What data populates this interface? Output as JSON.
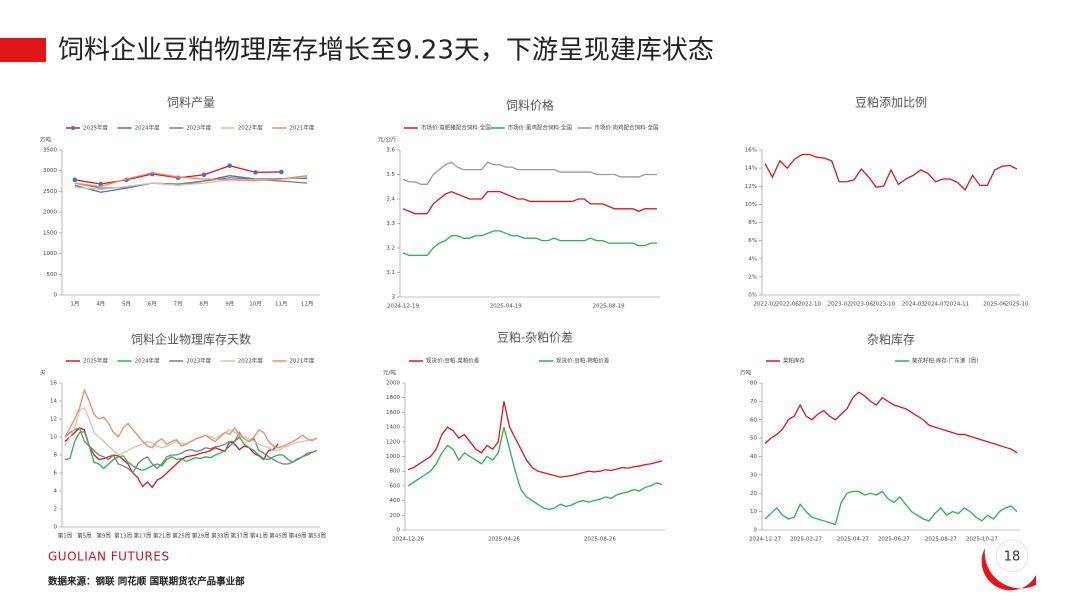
{
  "header": {
    "title": "饲料企业豆粕物理库存增长至9.23天，下游呈现建库状态"
  },
  "footer": {
    "logo": "GUOLIAN FUTURES",
    "source": "数据来源：钢联 同花顺 国联期货农产品事业部",
    "page": "18"
  },
  "chart_data": [
    {
      "type": "line",
      "title": "饲料产量",
      "y_label": "万吨",
      "legend": "top",
      "categories": [
        "1月",
        "4月",
        "5月",
        "6月",
        "7月",
        "8月",
        "9月",
        "10月",
        "11月",
        "12月"
      ],
      "ylim": [
        0,
        3500
      ],
      "yticks": [
        0,
        500,
        1000,
        1500,
        2000,
        2500,
        3000,
        3500
      ],
      "series": [
        {
          "name": "2025年度",
          "color": "#d7191c",
          "marker_color": "#4472c4",
          "values": [
            2780,
            2680,
            2780,
            2920,
            2830,
            2900,
            3120,
            2960,
            2970,
            null
          ]
        },
        {
          "name": "2024年度",
          "color": "#4472c4",
          "values": [
            2650,
            2480,
            2580,
            2700,
            2650,
            2750,
            2880,
            2800,
            2810,
            2820
          ]
        },
        {
          "name": "2023年度",
          "color": "#7f7f7f",
          "values": [
            2700,
            2580,
            2600,
            2700,
            2680,
            2750,
            2830,
            2790,
            2750,
            2700
          ]
        },
        {
          "name": "2022年度",
          "color": "#cfc6b4",
          "values": [
            2600,
            2550,
            2620,
            2700,
            2650,
            2700,
            2780,
            2780,
            2800,
            2850
          ]
        },
        {
          "name": "2021年度",
          "color": "#f08c64",
          "values": [
            2700,
            2620,
            2800,
            2950,
            2850,
            2800,
            2780,
            2760,
            2800,
            2880
          ]
        }
      ]
    },
    {
      "type": "line",
      "title": "饲料价格",
      "y_label": "元/公斤",
      "legend": "top",
      "categories": [
        "2024-12-19",
        null,
        null,
        null,
        null,
        null,
        null,
        null,
        null,
        null,
        null,
        null,
        null,
        null,
        null,
        null,
        null,
        "2025-04-19",
        null,
        null,
        null,
        null,
        null,
        null,
        null,
        null,
        null,
        null,
        null,
        null,
        null,
        null,
        null,
        null,
        "2025-08-19",
        null,
        null,
        null,
        null,
        null,
        null,
        null,
        null
      ],
      "ylim": [
        3,
        3.6
      ],
      "yticks": [
        3,
        3.1,
        3.2,
        3.3,
        3.4,
        3.5,
        3.6
      ],
      "series": [
        {
          "name": "市场价:育肥猪配合饲料:全国",
          "color": "#d7191c",
          "values": [
            3.36,
            3.35,
            3.34,
            3.34,
            3.34,
            3.38,
            3.4,
            3.42,
            3.43,
            3.42,
            3.41,
            3.4,
            3.4,
            3.4,
            3.43,
            3.43,
            3.43,
            3.42,
            3.41,
            3.4,
            3.4,
            3.39,
            3.39,
            3.39,
            3.39,
            3.39,
            3.39,
            3.39,
            3.39,
            3.4,
            3.4,
            3.38,
            3.38,
            3.38,
            3.37,
            3.36,
            3.36,
            3.36,
            3.36,
            3.35,
            3.36,
            3.36,
            3.36
          ]
        },
        {
          "name": "市场价:蛋鸡配合饲料:全国",
          "color": "#2eb04f",
          "values": [
            3.18,
            3.17,
            3.17,
            3.17,
            3.17,
            3.2,
            3.22,
            3.23,
            3.25,
            3.25,
            3.24,
            3.24,
            3.25,
            3.25,
            3.26,
            3.27,
            3.27,
            3.26,
            3.25,
            3.25,
            3.24,
            3.24,
            3.24,
            3.23,
            3.23,
            3.24,
            3.23,
            3.23,
            3.23,
            3.23,
            3.23,
            3.24,
            3.23,
            3.23,
            3.22,
            3.22,
            3.22,
            3.22,
            3.22,
            3.21,
            3.21,
            3.22,
            3.22
          ]
        },
        {
          "name": "市场价:肉鸡配合饲料:全国",
          "color": "#999999",
          "values": [
            3.48,
            3.47,
            3.47,
            3.46,
            3.46,
            3.5,
            3.52,
            3.54,
            3.55,
            3.53,
            3.52,
            3.52,
            3.52,
            3.52,
            3.55,
            3.54,
            3.54,
            3.53,
            3.53,
            3.52,
            3.52,
            3.52,
            3.52,
            3.52,
            3.52,
            3.52,
            3.51,
            3.51,
            3.51,
            3.51,
            3.51,
            3.51,
            3.5,
            3.5,
            3.5,
            3.5,
            3.49,
            3.49,
            3.49,
            3.49,
            3.5,
            3.5,
            3.5
          ]
        }
      ]
    },
    {
      "type": "line",
      "title": "豆粕添加比例",
      "categories": [
        "2022-02",
        null,
        null,
        "2022-06",
        null,
        null,
        "2022-10",
        null,
        null,
        null,
        "2023-02",
        null,
        null,
        "2023-06",
        null,
        null,
        "2023-10",
        null,
        null,
        null,
        "2024-03",
        null,
        null,
        "2024-07",
        null,
        null,
        "2024-11",
        null,
        null,
        null,
        null,
        "2025-06",
        null,
        null,
        "2025-10"
      ],
      "ylim": [
        0,
        16
      ],
      "yticks": [
        {
          "value": 0,
          "label": "0%"
        },
        {
          "value": 2,
          "label": "2%"
        },
        {
          "value": 4,
          "label": "4%"
        },
        {
          "value": 6,
          "label": "6%"
        },
        {
          "value": 8,
          "label": "8%"
        },
        {
          "value": 10,
          "label": "10%"
        },
        {
          "value": 12,
          "label": "12%"
        },
        {
          "value": 14,
          "label": "14%"
        },
        {
          "value": 16,
          "label": "16%"
        }
      ],
      "series": [
        {
          "color": "#d7191c",
          "values": [
            14.5,
            13,
            14.8,
            14,
            15,
            15.5,
            15.5,
            15.2,
            15.1,
            14.8,
            12.5,
            12.5,
            12.7,
            13.9,
            13,
            11.9,
            12,
            13.8,
            12.2,
            12.8,
            13.2,
            13.8,
            13.4,
            12.5,
            12.8,
            12.8,
            12.4,
            11.6,
            13.2,
            12.1,
            12.1,
            13.8,
            14.2,
            14.3,
            13.9
          ]
        }
      ]
    },
    {
      "type": "line",
      "title": "饲料企业物理库存天数",
      "y_label": "天",
      "legend": "top",
      "categories": [
        "第1周",
        null,
        null,
        null,
        "第5周",
        null,
        null,
        null,
        "第9周",
        null,
        null,
        null,
        "第13周",
        null,
        null,
        null,
        "第17周",
        null,
        null,
        null,
        "第21周",
        null,
        null,
        null,
        "第25周",
        null,
        null,
        null,
        "第29周",
        null,
        null,
        null,
        "第33周",
        null,
        null,
        null,
        "第37周",
        null,
        null,
        null,
        "第41周",
        null,
        null,
        null,
        "第45周",
        null,
        null,
        null,
        "第49周",
        null,
        null,
        null,
        "第53周"
      ],
      "ylim": [
        0,
        16
      ],
      "yticks": [
        0,
        2,
        4,
        6,
        8,
        10,
        12,
        14,
        16
      ],
      "series": [
        {
          "name": "2025年度",
          "color": "#d7191c",
          "values": [
            9.5,
            10,
            10.5,
            11,
            10.8,
            9,
            8,
            7.5,
            7.6,
            7.8,
            8,
            7.9,
            7.5,
            7,
            6,
            5.5,
            4.5,
            5,
            4.4,
            5.2,
            5.5,
            6,
            6.5,
            7,
            7.5,
            7.8,
            7.9,
            8,
            8.2,
            8.3,
            8.5,
            8.8,
            8.6,
            8.4,
            9.5,
            9.2,
            8.6,
            9,
            8.8,
            8.2,
            7.9,
            7.5,
            8.5,
            8.6,
            9.23,
            null,
            null,
            null,
            null,
            null,
            null,
            null,
            null
          ]
        },
        {
          "name": "2024年度",
          "color": "#2eb04f",
          "values": [
            7.5,
            7.6,
            9.5,
            10.5,
            10.6,
            9,
            7.2,
            7,
            6.5,
            7,
            7.5,
            7.8,
            7.9,
            7.2,
            6.8,
            6.5,
            6.3,
            6.5,
            6.8,
            7,
            6.8,
            7.5,
            7.8,
            7.5,
            7.6,
            7.3,
            7.5,
            7.7,
            7.6,
            7.8,
            7.7,
            8,
            8.2,
            8.5,
            9,
            9.5,
            10,
            9.2,
            8.8,
            8.5,
            8,
            7.6,
            7.5,
            7.8,
            8,
            8,
            7.5,
            7.2,
            7.6,
            7.8,
            8.2,
            8.3,
            8.5
          ]
        },
        {
          "name": "2023年度",
          "color": "#7f7f7f",
          "values": [
            10,
            10.5,
            10.8,
            11,
            9.5,
            9,
            8.5,
            8,
            7.8,
            7.5,
            8,
            7,
            6.8,
            6.5,
            6,
            7,
            7.5,
            7.8,
            7,
            6.5,
            7,
            7.8,
            8,
            8,
            8.2,
            8.5,
            8.6,
            8.4,
            8.5,
            8.8,
            8.7,
            8.9,
            9,
            9.2,
            9.5,
            9.5,
            10.5,
            9.8,
            9.5,
            9.8,
            8.5,
            8.2,
            7.8,
            7.5,
            7.2,
            7,
            7,
            7.2,
            7.5,
            7.8,
            8,
            8.3,
            8.5
          ]
        },
        {
          "name": "2022年度",
          "color": "#cfc6b4",
          "values": [
            9,
            10,
            11,
            13,
            13.2,
            12,
            10.5,
            10,
            9.5,
            9,
            8.5,
            8,
            8.2,
            8.5,
            8.8,
            9,
            9.2,
            9.5,
            9.3,
            9,
            8.8,
            9,
            9.2,
            9.5,
            9.3,
            9.2,
            9.5,
            9.8,
            10,
            10.2,
            10,
            9.8,
            10.2,
            10.5,
            10.8,
            10.5,
            10.3,
            10,
            9.8,
            9.5,
            9.2,
            9,
            8.8,
            8.5,
            8.5,
            8.8,
            9,
            9.2,
            9.4,
            9.5,
            9.6,
            9.7,
            9.8
          ]
        },
        {
          "name": "2021年度",
          "color": "#f08c64",
          "values": [
            10,
            11,
            12,
            13.2,
            15.2,
            14,
            12.5,
            12,
            12.2,
            11.5,
            10.5,
            10,
            11,
            11.5,
            10.8,
            10.2,
            9.5,
            9,
            8.8,
            9.5,
            9.8,
            9.2,
            9.5,
            9.7,
            9,
            9.2,
            9.5,
            9.8,
            10,
            10.2,
            9.8,
            9.5,
            10,
            10.5,
            10.3,
            11,
            10.2,
            9.8,
            9.5,
            10,
            10.8,
            10.5,
            9.5,
            9,
            8.8,
            9,
            9.2,
            9.5,
            9.8,
            10.2,
            9.8,
            9.6,
            9.9
          ]
        }
      ]
    },
    {
      "type": "line",
      "title": "豆粕-杂粕价差",
      "y_label": "元/吨",
      "legend": "top",
      "categories": [
        "2024-12-26",
        null,
        null,
        null,
        null,
        null,
        null,
        null,
        null,
        null,
        null,
        null,
        null,
        null,
        null,
        null,
        null,
        "2025-04-26",
        null,
        null,
        null,
        null,
        null,
        null,
        null,
        null,
        null,
        null,
        null,
        null,
        null,
        null,
        null,
        null,
        "2025-08-26",
        null,
        null,
        null,
        null,
        null,
        null,
        null,
        null,
        null,
        null,
        null
      ],
      "ylim": [
        0,
        2000
      ],
      "yticks": [
        0,
        200,
        400,
        600,
        800,
        1000,
        1200,
        1400,
        1600,
        1800,
        2000
      ],
      "series": [
        {
          "name": "现货价:豆粕-菜粕价差",
          "color": "#d7191c",
          "values": [
            820,
            850,
            900,
            950,
            1000,
            1100,
            1300,
            1400,
            1350,
            1250,
            1300,
            1200,
            1100,
            1050,
            1150,
            1100,
            1200,
            1750,
            1400,
            1250,
            1100,
            950,
            850,
            800,
            780,
            760,
            740,
            720,
            730,
            740,
            760,
            780,
            800,
            790,
            800,
            820,
            810,
            830,
            850,
            840,
            860,
            870,
            890,
            900,
            920,
            940
          ]
        },
        {
          "name": "现货价:豆粕-棉粕价差",
          "color": "#2eb04f",
          "values": [
            600,
            650,
            700,
            750,
            800,
            900,
            1050,
            1150,
            1100,
            950,
            1050,
            1000,
            950,
            900,
            1000,
            950,
            1050,
            1400,
            1100,
            800,
            550,
            450,
            400,
            350,
            300,
            280,
            300,
            350,
            320,
            340,
            380,
            400,
            380,
            400,
            420,
            450,
            430,
            480,
            500,
            520,
            550,
            530,
            580,
            600,
            640,
            620
          ]
        }
      ]
    },
    {
      "type": "line",
      "title": "杂粕库存",
      "y_label": "万吨",
      "legend": "top",
      "categories": [
        "2024-12-27",
        null,
        null,
        null,
        null,
        null,
        null,
        "2025-02-27",
        null,
        null,
        null,
        null,
        null,
        null,
        null,
        "2025-04-27",
        null,
        null,
        null,
        null,
        null,
        null,
        "2025-06-27",
        null,
        null,
        null,
        null,
        null,
        null,
        null,
        "2025-08-27",
        null,
        null,
        null,
        null,
        null,
        null,
        "2025-10-27",
        null,
        null,
        null,
        null,
        null,
        null
      ],
      "ylim": [
        0,
        80
      ],
      "yticks": [
        0,
        10,
        20,
        30,
        40,
        50,
        60,
        70,
        80
      ],
      "series": [
        {
          "name": "菜粕库存",
          "color": "#d7191c",
          "values": [
            47,
            50,
            52,
            55,
            60,
            62,
            68,
            62,
            60,
            63,
            65,
            62,
            60,
            63,
            66,
            72,
            75,
            73,
            70,
            68,
            72,
            70,
            68,
            67,
            66,
            64,
            62,
            60,
            57,
            56,
            55,
            54,
            53,
            52,
            52,
            51,
            50,
            49,
            48,
            47,
            46,
            45,
            44,
            42
          ]
        },
        {
          "name": "葵花籽粕:库存:广东港（周）",
          "color": "#2eb04f",
          "values": [
            6,
            9,
            12,
            8,
            6,
            7,
            14,
            10,
            7,
            6,
            5,
            4,
            3,
            15,
            20,
            21,
            21,
            19,
            20,
            19,
            21,
            17,
            15,
            18,
            14,
            10,
            8,
            6,
            5,
            9,
            12,
            8,
            10,
            9,
            12,
            10,
            7,
            5,
            8,
            6,
            10,
            12,
            13,
            10
          ]
        }
      ]
    }
  ]
}
